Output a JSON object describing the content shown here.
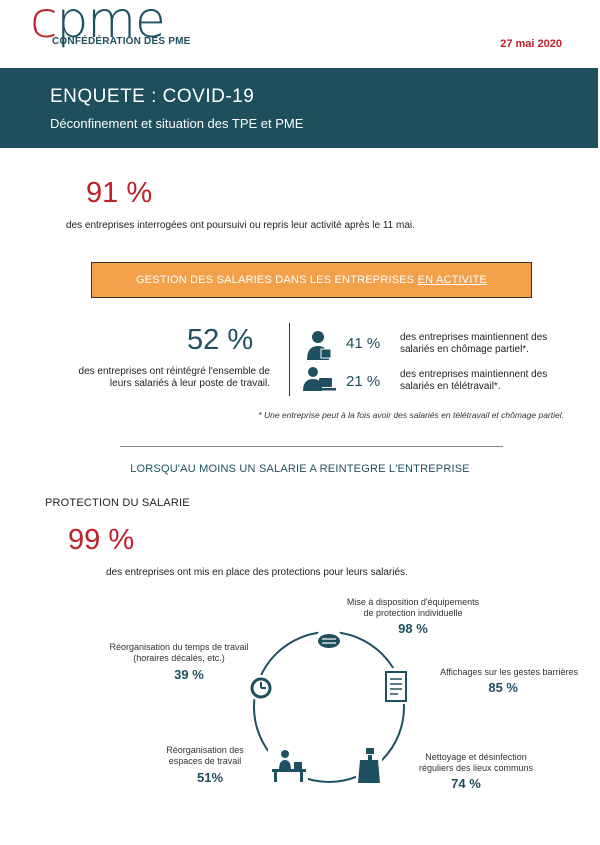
{
  "header": {
    "logo_c": "c",
    "logo_rest": "pme",
    "logo_sub": "CONFÉDÉRATION DES PME",
    "date": "27 mai 2020"
  },
  "banner": {
    "title": "ENQUETE : COVID-19",
    "subtitle": "Déconfinement et situation des TPE et PME"
  },
  "activity": {
    "value": "91 %",
    "text": "des entreprises interrogées ont poursuivi ou repris leur activité après le 11 mai."
  },
  "gestion": {
    "label_prefix": "GESTION DES SALARIES DANS LES ENTREPRISES ",
    "label_underlined": "EN ACTIVITE"
  },
  "reintegration": {
    "value": "52 %",
    "text_line1": "des entreprises ont réintégré l'ensemble de",
    "text_line2": "leurs  salariés à leur poste de travail."
  },
  "chomage": {
    "value": "41 %",
    "text_line1": "des entreprises maintiennent des",
    "text_line2": "salariés en chômage partiel*.",
    "icon": "worker-icon"
  },
  "teletravail": {
    "value": "21 %",
    "text_line1": "des entreprises maintiennent des",
    "text_line2": "salariés en télétravail*.",
    "icon": "laptop-worker-icon"
  },
  "note": "* Une entreprise peut à la fois avoir des salariés en télétravail et chômage partiel.",
  "section": {
    "heading": "LORSQU'AU MOINS UN SALARIE A REINTEGRE L'ENTREPRISE",
    "subheading": "PROTECTION DU SALARIE"
  },
  "protection": {
    "value": "99 %",
    "text": "des entreprises ont mis en place des protections pour leurs salariés."
  },
  "measures": [
    {
      "line1": "Mise à disposition d'équipements",
      "line2": "de protection individuelle",
      "value": "98 %",
      "icon": "mask-icon"
    },
    {
      "line1": "Affichages sur les gestes barrières",
      "line2": "",
      "value": "85 %",
      "icon": "poster-icon"
    },
    {
      "line1": "Nettoyage et désinfection",
      "line2": "réguliers des lieux communs",
      "value": "74 %",
      "icon": "spray-icon"
    },
    {
      "line1": "Réorganisation des",
      "line2": "espaces de travail",
      "value": "51%",
      "icon": "desk-icon"
    },
    {
      "line1": "Réorganisation du temps de travail",
      "line2": "(horaires décalés, etc.)",
      "value": "39 %",
      "icon": "clock-icon"
    }
  ],
  "colors": {
    "accent_red": "#c0202a",
    "teal": "#1f5060",
    "orange": "#f3a04a"
  }
}
